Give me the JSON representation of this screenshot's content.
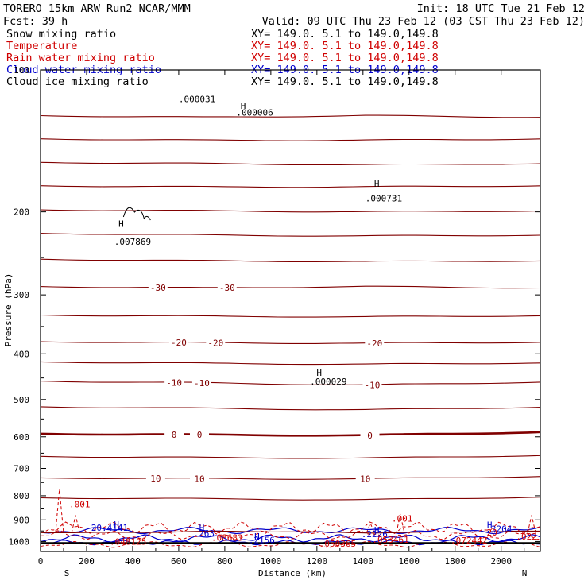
{
  "header": {
    "model": "TORERO  15km ARW   Run2    NCAR/MMM",
    "init": "Init: 18 UTC Tue 21 Feb 12",
    "fcst": "Fcst:   39 h",
    "valid": "Valid: 09 UTC Thu 23 Feb 12 (03 CST Thu 23 Feb 12)"
  },
  "fields": [
    {
      "name": "Snow mixing ratio",
      "xy": "XY= 149.0.  5.1 to 149.0,149.8",
      "color": "#000000"
    },
    {
      "name": "Temperature",
      "xy": "XY= 149.0.  5.1 to 149.0,149.8",
      "color": "#d00000"
    },
    {
      "name": "Rain water mixing ratio",
      "xy": "XY= 149.0.  5.1 to 149.0,149.8",
      "color": "#d00000"
    },
    {
      "name": "Cloud water mixing ratio",
      "xy": "XY= 149.0.  5.1 to 149.0,149.8",
      "color": "#0000cc"
    },
    {
      "name": "Cloud ice mixing ratio",
      "xy": "XY= 149.0.  5.1 to 149.0,149.8",
      "color": "#000000"
    }
  ],
  "colors": {
    "temperature": "#800000",
    "rain": "#d00000",
    "cloud_water": "#0000cc",
    "snow_ice": "#000000"
  },
  "chart_data": {
    "type": "contour",
    "xlabel": "Distance (km)",
    "ylabel": "Pressure (hPa)",
    "xlim": [
      0,
      2170
    ],
    "ylim": [
      100,
      1050
    ],
    "y_log": true,
    "xticks": [
      0,
      200,
      400,
      600,
      800,
      1000,
      1200,
      1400,
      1600,
      1800,
      2000
    ],
    "yticks": [
      100,
      200,
      300,
      400,
      500,
      600,
      700,
      800,
      900,
      1000
    ],
    "endpoints": {
      "left": "S",
      "right": "N"
    },
    "temperature_isotherms": [
      {
        "level": -30,
        "pressure": [
          288,
          290,
          288,
          290
        ],
        "labels": [
          "-30",
          "-30"
        ],
        "label_x": [
          510,
          810
        ]
      },
      {
        "level": -20,
        "pressure": [
          377,
          379,
          380,
          378
        ],
        "labels": [
          "-20",
          "-20",
          "-20"
        ],
        "label_x": [
          600,
          760,
          1450
        ]
      },
      {
        "level": -10,
        "pressure": [
          457,
          461,
          466,
          459
        ],
        "labels": [
          "-10",
          "-10",
          "-10"
        ],
        "label_x": [
          580,
          700,
          1440
        ]
      },
      {
        "level": 0,
        "pressure": [
          591,
          594,
          596,
          586
        ],
        "labels": [
          "0",
          "0",
          "0"
        ],
        "label_x": [
          580,
          690,
          1430
        ]
      },
      {
        "level": 10,
        "pressure": [
          733,
          736,
          737,
          728
        ],
        "labels": [
          "10",
          "10",
          "10"
        ],
        "label_x": [
          500,
          690,
          1410
        ]
      }
    ],
    "annotations": [
      {
        "text": ".000031",
        "x": 680,
        "p": 117
      },
      {
        "text": "H",
        "x": 880,
        "p": 121
      },
      {
        "text": ".000006",
        "x": 930,
        "p": 125
      },
      {
        "text": "H",
        "x": 1460,
        "p": 177
      },
      {
        "text": ".000731",
        "x": 1490,
        "p": 190
      },
      {
        "text": "H",
        "x": 350,
        "p": 215
      },
      {
        "text": ".007869",
        "x": 400,
        "p": 235
      },
      {
        "text": "H",
        "x": 1210,
        "p": 445
      },
      {
        "text": ".000029",
        "x": 1250,
        "p": 465
      },
      {
        "text": ".001",
        "x": 170,
        "p": 846
      },
      {
        "text": ".001",
        "x": 1570,
        "p": 907
      },
      {
        "text": "H",
        "x": 330,
        "p": 935
      },
      {
        "text": "20.4141",
        "x": 300,
        "p": 950
      },
      {
        "text": "H",
        "x": 700,
        "p": 950
      },
      {
        "text": ".263",
        "x": 710,
        "p": 975
      },
      {
        "text": "H",
        "x": 940,
        "p": 990
      },
      {
        "text": ".2156",
        "x": 960,
        "p": 1008
      },
      {
        "text": "H",
        "x": 1460,
        "p": 960
      },
      {
        "text": ".2226",
        "x": 1450,
        "p": 980
      },
      {
        "text": "H",
        "x": 1950,
        "p": 937
      },
      {
        "text": ".3204",
        "x": 1990,
        "p": 955
      },
      {
        "text": ".08683",
        "x": 810,
        "p": 997
      },
      {
        "text": ".048125",
        "x": 380,
        "p": 1015
      },
      {
        "text": ".050365",
        "x": 1290,
        "p": 1025
      },
      {
        "text": ".053461",
        "x": 1520,
        "p": 1007
      },
      {
        "text": ".072442",
        "x": 1860,
        "p": 1010
      },
      {
        "text": ".022",
        "x": 2110,
        "p": 990
      },
      {
        "text": "20",
        "x": 1960,
        "p": 972
      }
    ]
  }
}
